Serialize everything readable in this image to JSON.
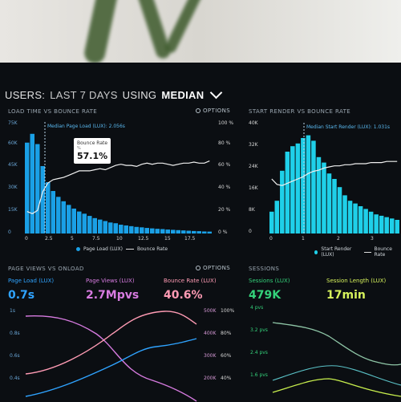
{
  "header": {
    "light1": "USERS:",
    "bold1": "LAST 7 DAYS",
    "light2": "USING",
    "bold2": "MEDIAN"
  },
  "options_label": "OPTIONS",
  "panels": {
    "load_time": {
      "title": "LOAD TIME VS BOUNCE RATE",
      "median_note": "Median Page Load (LUX): 2.056s",
      "tooltip": {
        "title": "Bounce Rate",
        "unit": "%",
        "value": "57.1%"
      },
      "y_left": [
        "75K",
        "60K",
        "45K",
        "30K",
        "15K",
        "0"
      ],
      "y_right": [
        "100 %",
        "80 %",
        "60 %",
        "40 %",
        "20 %",
        "0 %"
      ],
      "x_ticks": [
        "0",
        "2.5",
        "5",
        "7.5",
        "10",
        "12.5",
        "15",
        "17.5"
      ],
      "legend": {
        "series1": "Page Load (LUX)",
        "series2": "Bounce Rate"
      }
    },
    "start_render": {
      "title": "START RENDER VS BOUNCE RATE",
      "median_note": "Median Start Render (LUX): 1.031s",
      "y_left": [
        "40K",
        "32K",
        "24K",
        "16K",
        "8K",
        "0"
      ],
      "x_ticks": [
        "0",
        "1",
        "2",
        "3"
      ],
      "legend": {
        "series1": "Start Render (LUX)",
        "series2": "Bounce Rate"
      }
    },
    "page_views": {
      "title": "PAGE VIEWS VS ONLOAD",
      "metrics": [
        {
          "label": "Page Load (LUX)",
          "value": "0.7s",
          "color": "#2fa3ff"
        },
        {
          "label": "Page Views (LUX)",
          "value": "2.7Mpvs",
          "color": "#d77be0"
        },
        {
          "label": "Bounce Rate (LUX)",
          "value": "40.6%",
          "color": "#ff9bb4"
        }
      ],
      "y_left": [
        "1s",
        "0.8s",
        "0.6s",
        "0.4s"
      ],
      "y_mid": [
        "500K",
        "400K",
        "300K",
        "200K"
      ],
      "y_right": [
        "100%",
        "80%",
        "60%",
        "40%"
      ]
    },
    "sessions": {
      "title": "SESSIONS",
      "metrics": [
        {
          "label": "Sessions (LUX)",
          "value": "479K",
          "color": "#34d17a"
        },
        {
          "label": "Session Length (LUX)",
          "value": "17min",
          "color": "#d7f35c"
        }
      ],
      "y_left": [
        "4 pvs",
        "3.2 pvs",
        "2.4 pvs",
        "1.6 pvs"
      ]
    }
  },
  "chart_data": [
    {
      "type": "bar",
      "title": "LOAD TIME VS BOUNCE RATE",
      "x": [
        0.5,
        1,
        1.5,
        2,
        2.5,
        3,
        3.5,
        4,
        4.5,
        5,
        5.5,
        6,
        6.5,
        7,
        7.5,
        8,
        8.5,
        9,
        9.5,
        10,
        10.5,
        11,
        11.5,
        12,
        12.5,
        13,
        13.5,
        14,
        14.5,
        15,
        15.5,
        16,
        16.5,
        17,
        17.5,
        18
      ],
      "series": [
        {
          "name": "Page Load (LUX)",
          "values": [
            62000,
            68000,
            61000,
            46000,
            35000,
            29000,
            25000,
            22000,
            19500,
            17000,
            15000,
            13500,
            12000,
            10500,
            9500,
            8500,
            7500,
            7000,
            6000,
            5500,
            5000,
            4500,
            4200,
            3800,
            3500,
            3200,
            3000,
            2700,
            2500,
            2300,
            2100,
            1900,
            1700,
            1600,
            1400,
            1300
          ]
        },
        {
          "name": "Bounce Rate",
          "values": [
            20,
            18,
            21,
            38,
            46,
            49,
            50,
            51,
            53,
            55,
            57,
            57.1,
            57,
            58,
            59,
            58,
            60,
            62,
            63,
            62,
            62,
            61,
            63,
            64,
            63,
            64,
            64,
            63,
            62,
            63,
            64,
            64,
            65,
            64,
            64,
            66
          ]
        }
      ],
      "xlabel": "",
      "ylabel": "",
      "ylim": [
        0,
        75000
      ],
      "y2lim": [
        0,
        100
      ]
    },
    {
      "type": "bar",
      "title": "START RENDER VS BOUNCE RATE",
      "x": [
        0.2,
        0.3,
        0.4,
        0.5,
        0.6,
        0.7,
        0.8,
        0.9,
        1.0,
        1.1,
        1.2,
        1.3,
        1.4,
        1.5,
        1.6,
        1.7,
        1.8,
        1.9,
        2,
        2.2,
        2.4,
        2.6,
        2.8,
        3.0,
        3.2
      ],
      "series": [
        {
          "name": "Start Render (LUX)",
          "values": [
            8000,
            12000,
            23000,
            30000,
            32000,
            33000,
            35000,
            36000,
            34000,
            28000,
            26000,
            22000,
            20000,
            17000,
            14000,
            12000,
            11000,
            10000,
            9000,
            8000,
            7000,
            6500,
            6000,
            5500,
            5000
          ]
        },
        {
          "name": "Bounce Rate",
          "values": [
            50,
            45,
            44,
            46,
            48,
            50,
            52,
            55,
            57,
            58,
            60,
            61,
            62,
            62,
            63,
            63,
            64,
            64,
            64,
            65,
            65,
            65,
            66,
            66,
            66
          ]
        }
      ],
      "xlabel": "",
      "ylabel": "",
      "ylim": [
        0,
        40000
      ]
    }
  ]
}
